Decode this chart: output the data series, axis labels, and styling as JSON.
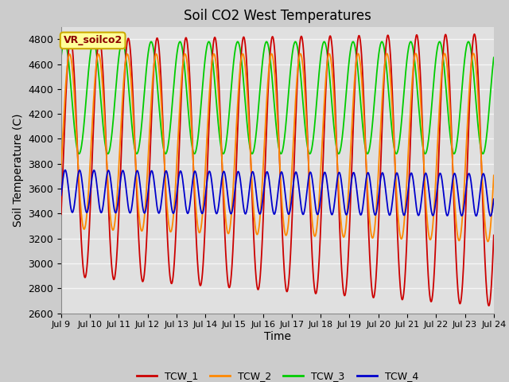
{
  "title": "Soil CO2 West Temperatures",
  "xlabel": "Time",
  "ylabel": "Soil Temperature (C)",
  "ylim": [
    2600,
    4900
  ],
  "background_color": "#cccccc",
  "plot_bg_color": "#e0e0e0",
  "grid_color": "#f5f5f5",
  "annotation_text": "VR_soilco2",
  "annotation_bg": "#ffff99",
  "annotation_border": "#ccaa00",
  "legend_entries": [
    "TCW_1",
    "TCW_2",
    "TCW_3",
    "TCW_4"
  ],
  "line_colors": [
    "#cc0000",
    "#ff8800",
    "#00cc00",
    "#0000cc"
  ],
  "xtick_labels": [
    "Jul 9",
    "Jul 10",
    "Jul 11",
    "Jul 12",
    "Jul 13",
    "Jul 14",
    "Jul 15",
    "Jul 16",
    "Jul 17",
    "Jul 18",
    "Jul 19",
    "Jul 20",
    "Jul 21",
    "Jul 22",
    "Jul 23",
    "Jul 24"
  ],
  "days": 15,
  "points_per_day": 100
}
